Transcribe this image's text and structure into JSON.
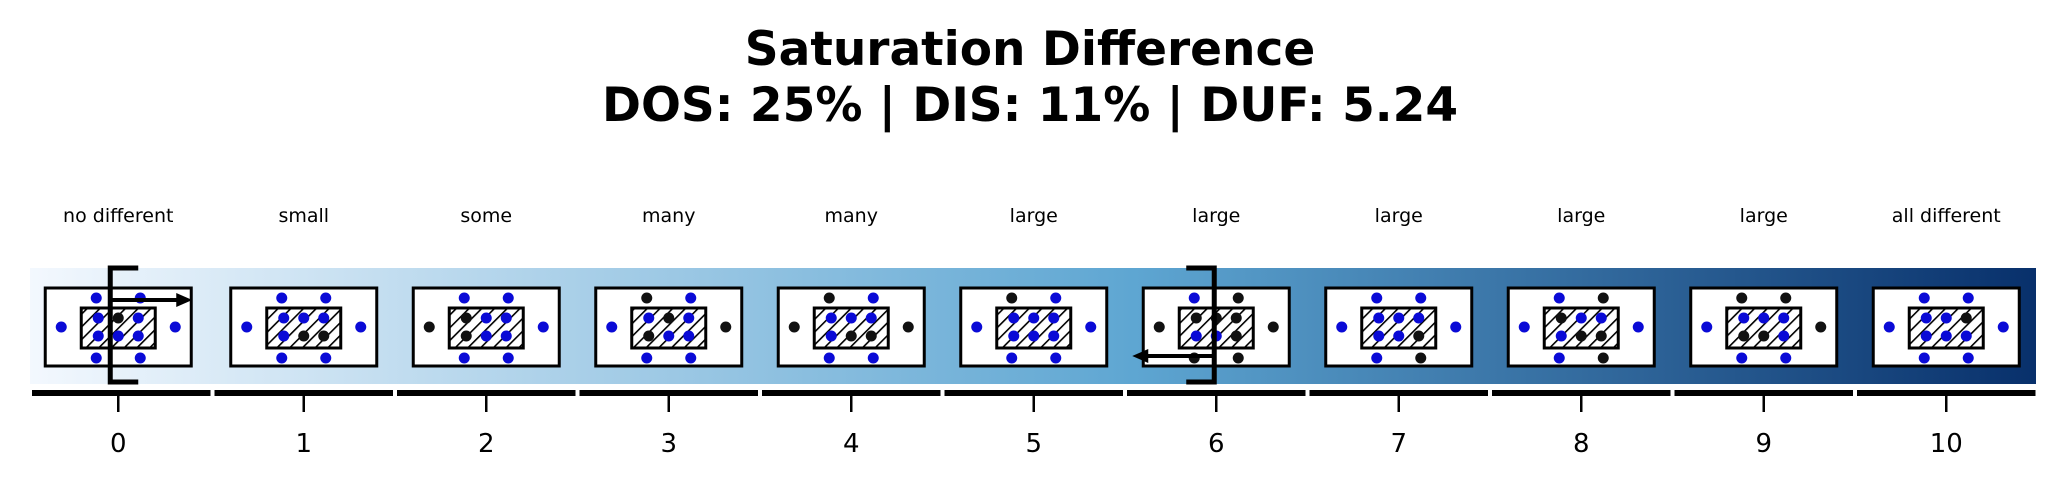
{
  "title": "Saturation Difference",
  "subtitle": "DOS: 25% | DIS: 11% | DUF: 5.24",
  "colors": {
    "gradient_start": "#f3f8fe",
    "gradient_end": "#08306b",
    "dot_blue": "#0a0ad6",
    "dot_black": "#111111"
  },
  "cells": [
    {
      "index": "0",
      "label": "no different",
      "blue_fraction": 0.85,
      "bracket": "left"
    },
    {
      "index": "1",
      "label": "small",
      "blue_fraction": 0.8
    },
    {
      "index": "2",
      "label": "some",
      "blue_fraction": 0.65
    },
    {
      "index": "3",
      "label": "many",
      "blue_fraction": 0.5
    },
    {
      "index": "4",
      "label": "many",
      "blue_fraction": 0.5
    },
    {
      "index": "5",
      "label": "large",
      "blue_fraction": 0.95
    },
    {
      "index": "6",
      "label": "large",
      "blue_fraction": 0.35,
      "bracket": "right"
    },
    {
      "index": "7",
      "label": "large",
      "blue_fraction": 0.95
    },
    {
      "index": "8",
      "label": "large",
      "blue_fraction": 0.6
    },
    {
      "index": "9",
      "label": "large",
      "blue_fraction": 0.6
    },
    {
      "index": "10",
      "label": "all different",
      "blue_fraction": 0.65
    }
  ]
}
